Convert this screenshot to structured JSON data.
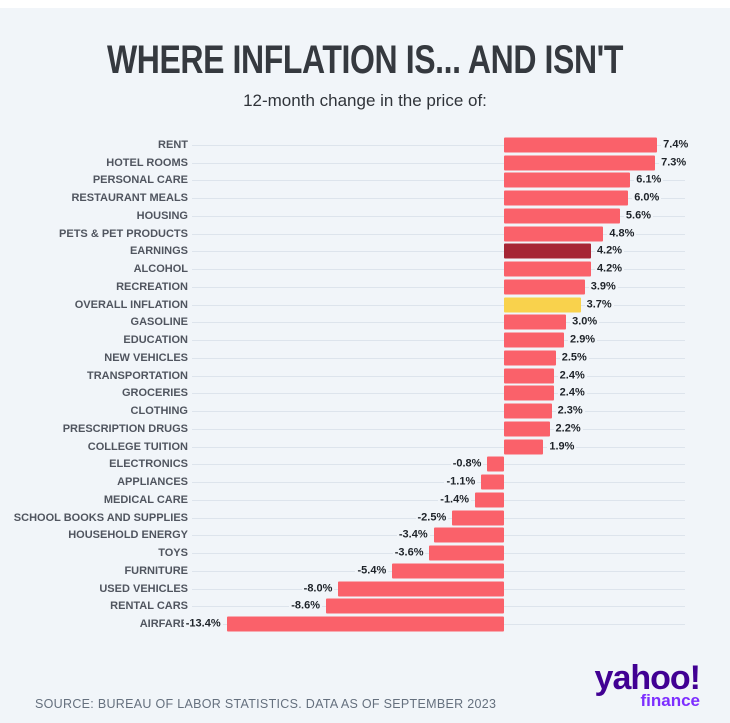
{
  "title": "WHERE INFLATION IS... AND ISN'T",
  "subtitle": "12-month change in the price of:",
  "source": "SOURCE: BUREAU OF LABOR STATISTICS. DATA AS OF SEPTEMBER 2023",
  "logo": {
    "brand": "yahoo!",
    "sub": "finance"
  },
  "colors": {
    "background": "#f1f5f9",
    "top_strip": "#ffffff",
    "bar_default": "#fa616a",
    "bar_highlight_dark": "#a62635",
    "bar_highlight_yellow": "#f9d24c",
    "leader_line": "#dde4ec",
    "category_label": "#50555f",
    "value_label": "#1e2329",
    "title_text": "#35393f",
    "subtitle_text": "#30343a",
    "source_text": "#65707e",
    "yahoo_purple": "#410093",
    "finance_purple": "#7d2eff"
  },
  "chart_data": {
    "type": "bar",
    "orientation": "horizontal",
    "title": "WHERE INFLATION IS... AND ISN'T",
    "subtitle": "12-month change in the price of:",
    "xlabel": "",
    "ylabel": "",
    "xlim": [
      -15,
      8
    ],
    "grid": false,
    "legend": false,
    "categories": [
      "RENT",
      "HOTEL ROOMS",
      "PERSONAL CARE",
      "RESTAURANT MEALS",
      "HOUSING",
      "PETS & PET PRODUCTS",
      "EARNINGS",
      "ALCOHOL",
      "RECREATION",
      "OVERALL INFLATION",
      "GASOLINE",
      "EDUCATION",
      "NEW VEHICLES",
      "TRANSPORTATION",
      "GROCERIES",
      "CLOTHING",
      "PRESCRIPTION DRUGS",
      "COLLEGE TUITION",
      "ELECTRONICS",
      "APPLIANCES",
      "MEDICAL CARE",
      "SCHOOL BOOKS AND SUPPLIES",
      "HOUSEHOLD ENERGY",
      "TOYS",
      "FURNITURE",
      "USED VEHICLES",
      "RENTAL CARS",
      "AIRFARE"
    ],
    "values": [
      7.4,
      7.3,
      6.1,
      6.0,
      5.6,
      4.8,
      4.2,
      4.2,
      3.9,
      3.7,
      3.0,
      2.9,
      2.5,
      2.4,
      2.4,
      2.3,
      2.2,
      1.9,
      -0.8,
      -1.1,
      -1.4,
      -2.5,
      -3.4,
      -3.6,
      -5.4,
      -8.0,
      -8.6,
      -13.4
    ],
    "value_labels": [
      "7.4%",
      "7.3%",
      "6.1%",
      "6.0%",
      "5.6%",
      "4.8%",
      "4.2%",
      "4.2%",
      "3.9%",
      "3.7%",
      "3.0%",
      "2.9%",
      "2.5%",
      "2.4%",
      "2.4%",
      "2.3%",
      "2.2%",
      "1.9%",
      "-0.8%",
      "-1.1%",
      "-1.4%",
      "-2.5%",
      "-3.4%",
      "-3.6%",
      "-5.4%",
      "-8.0%",
      "-8.6%",
      "-13.4%"
    ],
    "highlights": [
      null,
      null,
      null,
      null,
      null,
      null,
      "dark",
      null,
      null,
      "yellow",
      null,
      null,
      null,
      null,
      null,
      null,
      null,
      null,
      null,
      null,
      null,
      null,
      null,
      null,
      null,
      null,
      null,
      null
    ]
  }
}
